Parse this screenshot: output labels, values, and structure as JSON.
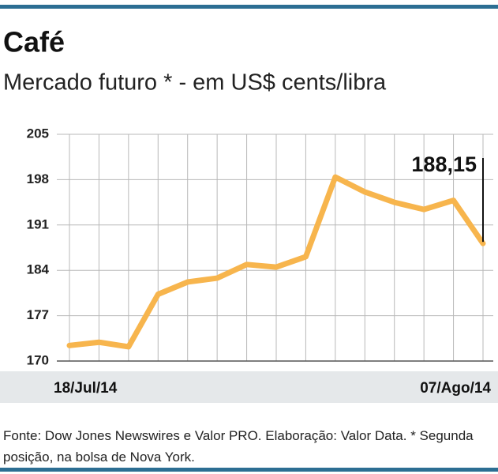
{
  "chart_data": {
    "type": "line",
    "title": "Café",
    "subtitle": "Mercado futuro * - em US$ cents/libra",
    "categories": [
      "18/Jul/14",
      null,
      null,
      null,
      null,
      null,
      null,
      null,
      null,
      null,
      null,
      null,
      null,
      null,
      "07/Ago/14"
    ],
    "values": [
      172.4,
      172.9,
      172.2,
      180.3,
      182.2,
      182.8,
      184.9,
      184.5,
      186.1,
      198.4,
      196.1,
      194.5,
      193.4,
      194.8,
      188.15
    ],
    "value_labels": [
      null,
      null,
      null,
      null,
      null,
      null,
      null,
      null,
      null,
      null,
      null,
      null,
      null,
      null,
      "188,15"
    ],
    "color": "#f7b54d",
    "ylim": [
      170,
      205
    ],
    "yticks": [
      170,
      177,
      184,
      191,
      198,
      205
    ],
    "grid": true,
    "source": "Fonte: Dow Jones Newswires e Valor PRO. Elaboração: Valor Data. * Segunda posição, na bolsa de Nova York."
  }
}
